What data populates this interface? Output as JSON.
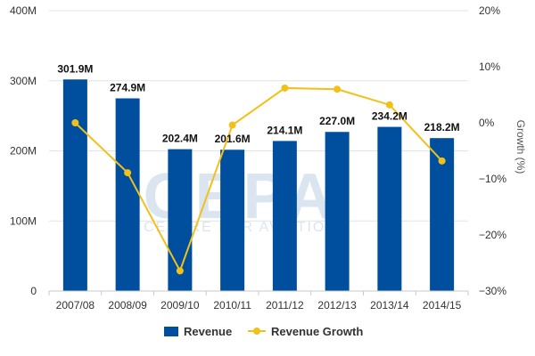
{
  "chart_data": {
    "type": "bar",
    "categories": [
      "2007/08",
      "2008/09",
      "2009/10",
      "2010/11",
      "2011/12",
      "2012/13",
      "2013/14",
      "2014/15"
    ],
    "series": [
      {
        "name": "Revenue",
        "type": "bar",
        "axis": "left",
        "unit": "M",
        "values": [
          301.9,
          274.9,
          202.4,
          201.6,
          214.1,
          227.0,
          234.2,
          218.2
        ],
        "labels": [
          "301.9M",
          "274.9M",
          "202.4M",
          "201.6M",
          "214.1M",
          "227.0M",
          "234.2M",
          "218.2M"
        ]
      },
      {
        "name": "Revenue Growth",
        "type": "line",
        "axis": "right",
        "unit": "%",
        "values": [
          0.0,
          -8.9,
          -26.4,
          -0.4,
          6.2,
          6.0,
          3.2,
          -6.8
        ]
      }
    ],
    "left_axis": {
      "ylim": [
        0,
        400
      ],
      "ticks": [
        0,
        100,
        200,
        300,
        400
      ],
      "tick_labels": [
        "0",
        "100M",
        "200M",
        "300M",
        "400M"
      ]
    },
    "right_axis": {
      "ylim": [
        -30,
        20
      ],
      "ticks": [
        -30,
        -20,
        -10,
        0,
        10,
        20
      ],
      "tick_labels": [
        "−30%",
        "−20%",
        "−10%",
        "0%",
        "10%",
        "20%"
      ],
      "label": "Growth (%)"
    },
    "grid": true,
    "legend_position": "bottom",
    "colors": {
      "bar": "#004f9f",
      "line": "#f2c01b",
      "grid": "#e3e3e3",
      "axis": "#c8c8c8",
      "text": "#333333"
    }
  },
  "watermark": {
    "text": "CEPA",
    "subtext": "CENTRE FOR AVIATION"
  }
}
